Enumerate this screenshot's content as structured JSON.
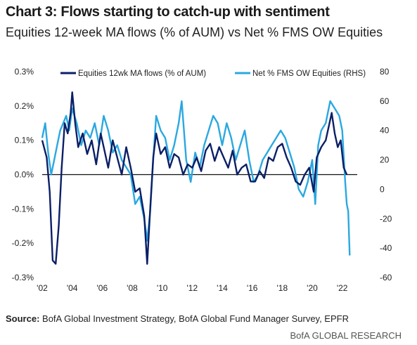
{
  "title": "Chart 3: Flows starting to catch-up with sentiment",
  "subtitle": "Equities 12-week MA flows (% of AUM) vs Net % FMS OW Equities",
  "source_label": "Source:",
  "source_text": " BofA Global Investment Strategy, BofA Global Fund Manager Survey, EPFR",
  "brand": "BofA GLOBAL RESEARCH",
  "colors": {
    "series1": "#0b1f66",
    "series2": "#2aa8e0",
    "zero_line": "#111111"
  },
  "chart_data": {
    "type": "line",
    "xlim": [
      2002,
      2023
    ],
    "x_ticks": [
      2002,
      2004,
      2006,
      2008,
      2010,
      2012,
      2014,
      2016,
      2018,
      2020,
      2022
    ],
    "x_tick_labels": [
      "'02",
      "'04",
      "'06",
      "'08",
      "'10",
      "'12",
      "'14",
      "'16",
      "'18",
      "'20",
      "'22"
    ],
    "y_left": {
      "lim": [
        -0.3,
        0.3
      ],
      "ticks": [
        -0.3,
        -0.2,
        -0.1,
        0.0,
        0.1,
        0.2,
        0.3
      ],
      "tick_labels": [
        "-0.3%",
        "-0.2%",
        "-0.1%",
        "0.0%",
        "0.1%",
        "0.2%",
        "0.3%"
      ]
    },
    "y_right": {
      "lim": [
        -60,
        80
      ],
      "ticks": [
        -60,
        -40,
        -20,
        0,
        20,
        40,
        60,
        80
      ],
      "tick_labels": [
        "-60",
        "-40",
        "-20",
        "0",
        "20",
        "40",
        "60",
        "80"
      ]
    },
    "legend_position": "top",
    "series": [
      {
        "name": "Equities 12wk MA flows (% of AUM)",
        "axis": "left",
        "x": [
          2002.0,
          2002.3,
          2002.5,
          2002.7,
          2002.9,
          2003.1,
          2003.3,
          2003.5,
          2003.7,
          2003.9,
          2004.0,
          2004.2,
          2004.4,
          2004.7,
          2005.0,
          2005.3,
          2005.6,
          2005.9,
          2006.1,
          2006.4,
          2006.7,
          2007.0,
          2007.3,
          2007.6,
          2007.9,
          2008.2,
          2008.5,
          2008.8,
          2009.0,
          2009.2,
          2009.4,
          2009.6,
          2009.9,
          2010.2,
          2010.5,
          2010.8,
          2011.1,
          2011.4,
          2011.7,
          2012.0,
          2012.3,
          2012.6,
          2012.9,
          2013.2,
          2013.5,
          2013.8,
          2014.1,
          2014.4,
          2014.7,
          2015.0,
          2015.3,
          2015.6,
          2015.9,
          2016.2,
          2016.5,
          2016.8,
          2017.1,
          2017.4,
          2017.7,
          2018.0,
          2018.3,
          2018.6,
          2018.9,
          2019.2,
          2019.5,
          2019.8,
          2020.1,
          2020.3,
          2020.6,
          2020.9,
          2021.1,
          2021.3,
          2021.5,
          2021.7,
          2021.9,
          2022.1,
          2022.3
        ],
        "values": [
          0.1,
          0.05,
          -0.05,
          -0.25,
          -0.26,
          -0.15,
          0.02,
          0.15,
          0.12,
          0.18,
          0.24,
          0.15,
          0.08,
          0.12,
          0.06,
          0.1,
          0.03,
          0.12,
          0.08,
          0.02,
          0.1,
          0.05,
          0.0,
          0.08,
          0.02,
          -0.05,
          -0.04,
          -0.12,
          -0.26,
          -0.1,
          0.05,
          0.12,
          0.06,
          0.08,
          0.02,
          0.06,
          0.05,
          0.0,
          0.03,
          0.02,
          0.05,
          0.01,
          0.07,
          0.09,
          0.04,
          0.08,
          0.05,
          0.02,
          0.07,
          0.0,
          0.02,
          0.03,
          -0.02,
          -0.02,
          0.01,
          -0.01,
          0.05,
          0.04,
          0.08,
          0.09,
          0.05,
          0.02,
          -0.02,
          -0.03,
          0.0,
          0.02,
          -0.05,
          0.05,
          0.08,
          0.1,
          0.14,
          0.18,
          0.12,
          0.08,
          0.1,
          0.02,
          0.0
        ]
      },
      {
        "name": "Net % FMS OW Equities (RHS)",
        "axis": "right",
        "x": [
          2002.0,
          2002.2,
          2002.4,
          2002.6,
          2002.8,
          2003.0,
          2003.2,
          2003.4,
          2003.6,
          2003.8,
          2004.0,
          2004.3,
          2004.6,
          2004.9,
          2005.2,
          2005.5,
          2005.8,
          2006.1,
          2006.4,
          2006.7,
          2007.0,
          2007.3,
          2007.6,
          2007.9,
          2008.2,
          2008.5,
          2008.8,
          2009.0,
          2009.2,
          2009.4,
          2009.6,
          2009.9,
          2010.2,
          2010.5,
          2010.8,
          2011.1,
          2011.3,
          2011.6,
          2011.9,
          2012.2,
          2012.5,
          2012.8,
          2013.1,
          2013.4,
          2013.7,
          2014.0,
          2014.3,
          2014.6,
          2014.9,
          2015.2,
          2015.5,
          2015.8,
          2016.1,
          2016.4,
          2016.7,
          2017.0,
          2017.3,
          2017.6,
          2017.9,
          2018.2,
          2018.5,
          2018.8,
          2019.1,
          2019.4,
          2019.7,
          2020.0,
          2020.2,
          2020.4,
          2020.6,
          2020.9,
          2021.2,
          2021.5,
          2021.8,
          2022.0,
          2022.2,
          2022.3,
          2022.4,
          2022.5
        ],
        "values": [
          35,
          45,
          25,
          10,
          20,
          30,
          40,
          45,
          50,
          40,
          55,
          45,
          30,
          40,
          35,
          45,
          30,
          50,
          40,
          25,
          30,
          20,
          15,
          10,
          -10,
          -5,
          -20,
          -35,
          -15,
          20,
          50,
          40,
          35,
          20,
          30,
          45,
          60,
          20,
          5,
          25,
          15,
          30,
          40,
          50,
          45,
          30,
          45,
          35,
          20,
          30,
          40,
          20,
          5,
          10,
          20,
          25,
          30,
          35,
          40,
          35,
          25,
          15,
          0,
          -5,
          5,
          20,
          -10,
          30,
          40,
          45,
          60,
          55,
          50,
          40,
          5,
          -10,
          -15,
          -45
        ]
      }
    ]
  }
}
